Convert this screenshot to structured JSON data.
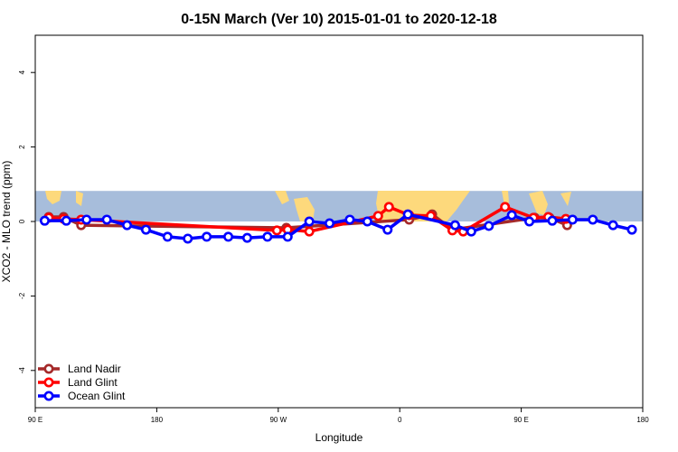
{
  "chart_data": {
    "type": "line",
    "title": "0-15N March (Ver 10)   2015-01-01 to 2020-12-18",
    "xlabel": "Longitude",
    "ylabel": "XCO2 - MLO trend (ppm)",
    "xlim": [
      90,
      540
    ],
    "ylim": [
      -5,
      5
    ],
    "x_ticks": [
      {
        "value": 90,
        "label": "90 E"
      },
      {
        "value": 180,
        "label": "180"
      },
      {
        "value": 270,
        "label": "90 W"
      },
      {
        "value": 360,
        "label": "0"
      },
      {
        "value": 450,
        "label": "90 E"
      },
      {
        "value": 540,
        "label": "180"
      }
    ],
    "y_ticks": [
      -4,
      -2,
      0,
      2,
      4
    ],
    "grid": false,
    "legend_position": "bottom-left",
    "background_map": {
      "latitude_band": "0-15N",
      "ocean_color": "#a7bddb",
      "land_color": "#fdd97c"
    },
    "series": [
      {
        "name": "Land Nadir",
        "color": "#a52a2a",
        "x": [
          100,
          111,
          124,
          276,
          367,
          384,
          399,
          460,
          471,
          484
        ],
        "y": [
          0.12,
          0.12,
          -0.1,
          -0.17,
          0.05,
          0.19,
          -0.22,
          0.1,
          0.1,
          -0.1
        ]
      },
      {
        "name": "Land Glint",
        "color": "#ff0000",
        "x": [
          100,
          111,
          124,
          269,
          277,
          293,
          344,
          352,
          367,
          383,
          399,
          407,
          438,
          459,
          470,
          483
        ],
        "y": [
          0.1,
          0.07,
          0.05,
          -0.24,
          -0.22,
          -0.27,
          0.15,
          0.39,
          0.17,
          0.15,
          -0.24,
          -0.27,
          0.39,
          0.1,
          0.12,
          0.07
        ]
      },
      {
        "name": "Ocean Glint",
        "color": "#0000ff",
        "x": [
          97,
          113,
          128,
          143,
          158,
          172,
          188,
          203,
          217,
          233,
          247,
          262,
          277,
          293,
          308,
          323,
          336,
          351,
          366,
          401,
          413,
          426,
          443,
          456,
          473,
          488,
          503,
          518,
          532
        ],
        "y": [
          0.02,
          0.02,
          0.05,
          0.05,
          -0.1,
          -0.22,
          -0.41,
          -0.46,
          -0.41,
          -0.41,
          -0.44,
          -0.41,
          -0.41,
          0,
          -0.05,
          0.05,
          0,
          -0.22,
          0.19,
          -0.1,
          -0.27,
          -0.12,
          0.17,
          0,
          0.02,
          0.05,
          0.05,
          -0.1,
          -0.22
        ]
      }
    ]
  }
}
